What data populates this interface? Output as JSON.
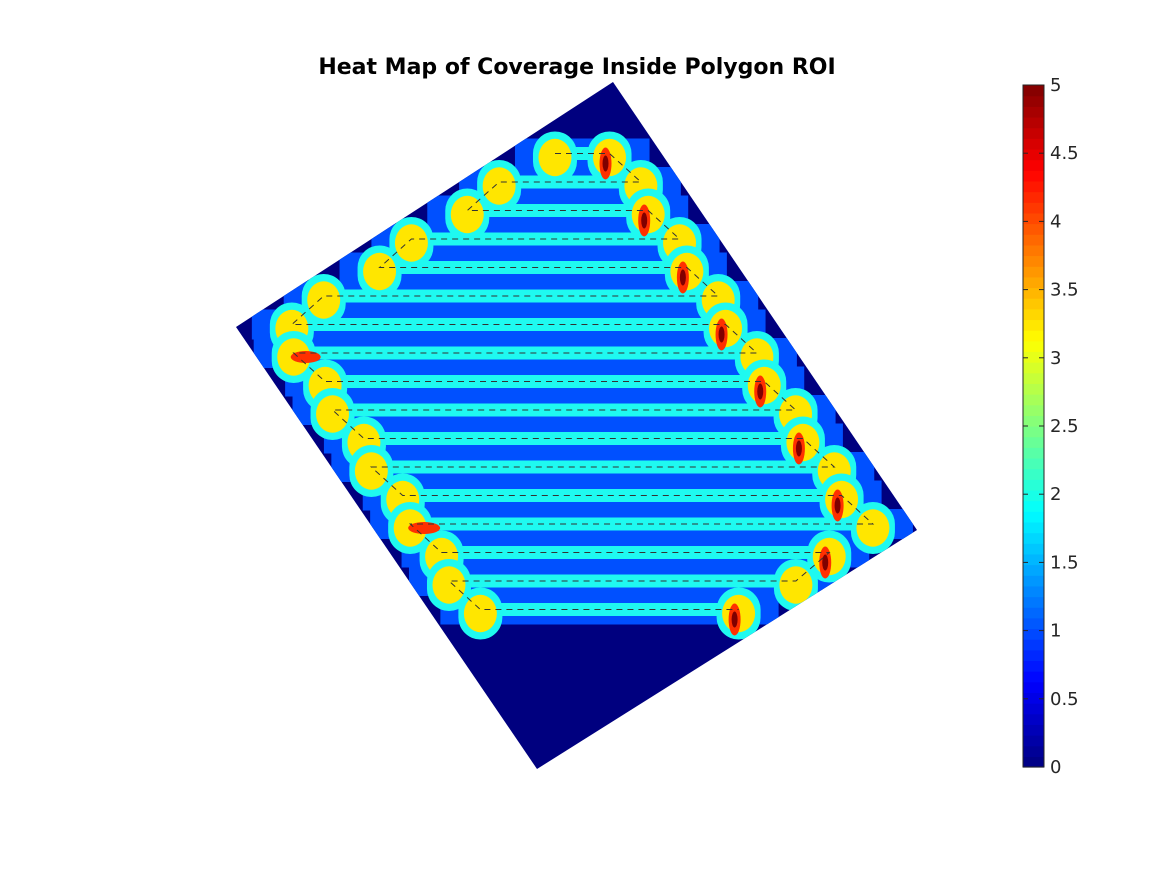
{
  "chart_data": {
    "type": "heatmap",
    "title": "Heat Map of Coverage Inside Polygon ROI",
    "xlabel": "",
    "ylabel": "",
    "colormap": "jet",
    "colorbar": {
      "range": [
        0,
        5
      ],
      "ticks": [
        0,
        0.5,
        1,
        1.5,
        2,
        2.5,
        3,
        3.5,
        4,
        4.5,
        5
      ],
      "tick_labels": [
        "0",
        "0.5",
        "1",
        "1.5",
        "2",
        "2.5",
        "3",
        "3.5",
        "4",
        "4.5",
        "5"
      ],
      "levels": 64,
      "placement": "right"
    },
    "region": "rotated rectangular polygon",
    "coverage_levels": {
      "background": 0,
      "single_pass_band": 1,
      "band_overlap": 2,
      "turn_overlap": 3,
      "hotspot": 5
    },
    "sweep_passes": 18,
    "path_style": "dashed"
  },
  "colors": {
    "level_0": "#00007f",
    "level_1": "#0050ff",
    "level_2": "#1ff9f0",
    "level_3": "#ffe600",
    "level_4": "#ff3000",
    "level_5": "#800000",
    "path": "#333333"
  }
}
